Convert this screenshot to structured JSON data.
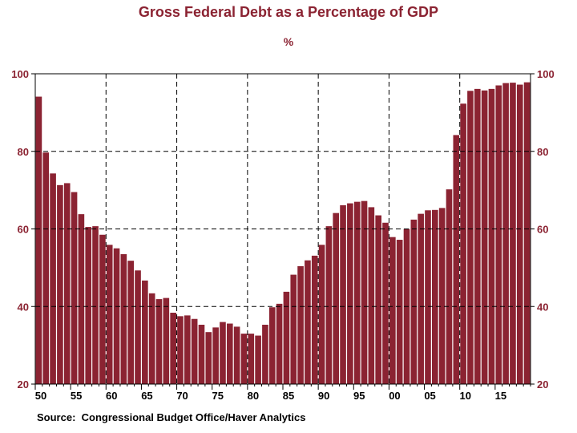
{
  "colors": {
    "bar": "#8B2332",
    "title": "#8B2332",
    "yticks": "#8B2332",
    "grid": "#000000"
  },
  "chart_data": {
    "type": "bar",
    "title": "Gross Federal Debt as a Percentage of GDP",
    "subtitle": "%",
    "ylim": [
      20,
      100
    ],
    "yticks": [
      20,
      40,
      60,
      80,
      100
    ],
    "ytick_labels": [
      "20",
      "40",
      "60",
      "80",
      "100"
    ],
    "xtick_years": [
      1950,
      1955,
      1960,
      1965,
      1970,
      1975,
      1980,
      1985,
      1990,
      1995,
      2000,
      2005,
      2010,
      2015
    ],
    "xtick_labels": [
      "50",
      "55",
      "60",
      "65",
      "70",
      "75",
      "80",
      "85",
      "90",
      "95",
      "00",
      "05",
      "10",
      "15"
    ],
    "grid_years": [
      1960,
      1970,
      1980,
      1990,
      2000,
      2010
    ],
    "grid_values": [
      40,
      60,
      80
    ],
    "x_start": 1950,
    "x_end": 2019,
    "values": [
      94.1,
      79.7,
      74.3,
      71.3,
      71.8,
      69.5,
      63.8,
      60.5,
      60.7,
      58.5,
      55.9,
      55.0,
      53.5,
      51.8,
      49.3,
      46.7,
      43.4,
      41.9,
      42.2,
      38.4,
      37.5,
      37.7,
      36.8,
      35.3,
      33.4,
      34.6,
      36.0,
      35.6,
      34.8,
      33.0,
      33.0,
      32.5,
      35.3,
      39.8,
      40.7,
      43.8,
      48.2,
      50.4,
      51.9,
      53.1,
      55.9,
      60.7,
      64.1,
      66.1,
      66.6,
      67.0,
      67.2,
      65.6,
      63.5,
      61.6,
      57.9,
      57.2,
      60.0,
      62.4,
      63.9,
      64.8,
      64.9,
      65.4,
      70.2,
      84.2,
      92.3,
      95.6,
      96.1,
      95.7,
      96.1,
      97.0,
      97.6,
      97.7,
      97.2,
      97.8
    ],
    "source": "Source:  Congressional Budget Office/Haver Analytics"
  }
}
